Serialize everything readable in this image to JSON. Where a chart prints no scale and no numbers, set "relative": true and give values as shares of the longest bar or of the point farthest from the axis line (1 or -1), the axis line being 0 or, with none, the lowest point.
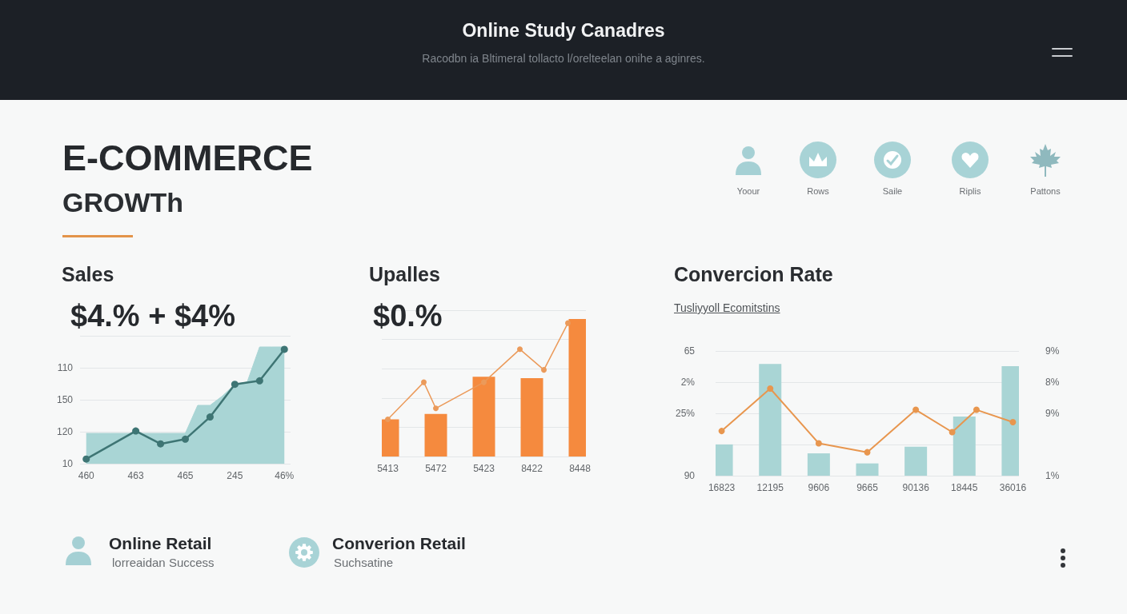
{
  "chart_data": [
    {
      "type": "other",
      "title": "Online Study Canadres",
      "subtitle": "Racodbn ia Bltimeral tollacto l/orelteelan onihe a aginres."
    },
    {
      "type": "other",
      "title": "E-COMMERCE",
      "subtitle": "GROWTh",
      "annotations": [
        "Yoour",
        "Rows",
        "Saile",
        "Riplis",
        "Pattons"
      ]
    },
    {
      "type": "line",
      "title": "Sales",
      "annotations": [
        "$4.% + $4%",
        "110",
        "150",
        "120",
        "10"
      ],
      "relative": true,
      "grid": "y",
      "marker": "circle",
      "categories": [
        "460",
        null,
        null,
        null,
        "463",
        null,
        null,
        null,
        "465",
        null,
        null,
        null,
        "245",
        null,
        null,
        null,
        "46%"
      ],
      "series": [
        {
          "type": "area",
          "marker": "none",
          "color": "#a9d5d5",
          "values": [
            0.26,
            0.26,
            0.26,
            0.26,
            0.26,
            0.26,
            0.26,
            0.26,
            0.26,
            0.5,
            0.5,
            0.58,
            0.68,
            0.7,
            1,
            1,
            1
          ]
        },
        {
          "type": "line",
          "color": "#3e7574",
          "values": [
            0.04,
            null,
            null,
            null,
            0.28,
            null,
            0.17,
            null,
            0.21,
            null,
            0.4,
            null,
            0.68,
            null,
            0.71,
            null,
            0.98
          ]
        }
      ]
    },
    {
      "type": "bar",
      "title": "Upalles",
      "annotations": [
        "$0.%"
      ],
      "relative": true,
      "grid": "y",
      "marker": "circle",
      "categories": [
        "5413",
        null,
        null,
        null,
        "5472",
        null,
        null,
        null,
        "5423",
        null,
        null,
        null,
        "8422",
        null,
        null,
        null,
        "8448"
      ],
      "series": [
        {
          "type": "bar",
          "color": "#f58a3e",
          "values": [
            0.27,
            null,
            null,
            null,
            0.31,
            null,
            null,
            null,
            0.58,
            null,
            null,
            null,
            0.57,
            null,
            null,
            null,
            1
          ]
        },
        {
          "type": "line",
          "color": "#eb9a5a",
          "values": [
            0.27,
            null,
            null,
            0.54,
            0.35,
            null,
            null,
            null,
            0.54,
            null,
            null,
            0.78,
            null,
            0.63,
            null,
            0.97,
            null
          ]
        }
      ]
    },
    {
      "type": "bar",
      "title": "Convercion Rate",
      "subtitle": "Tusliyyoll Ecomitstins",
      "annotations": [
        "65",
        "2%",
        "25%",
        "90",
        "9%",
        "8%",
        "9%",
        "1%"
      ],
      "relative": true,
      "grid": "y",
      "marker": "circle",
      "categories": [
        "16823",
        null,
        null,
        null,
        "12195",
        null,
        null,
        null,
        "9606",
        null,
        null,
        null,
        "9665",
        null,
        null,
        null,
        "90136",
        null,
        null,
        null,
        "18445",
        null,
        null,
        null,
        "36016"
      ],
      "series": [
        {
          "type": "bar",
          "color": "#a9d5d5",
          "values": [
            0.28,
            null,
            null,
            null,
            1,
            null,
            null,
            null,
            0.2,
            null,
            null,
            null,
            0.11,
            null,
            null,
            null,
            0.26,
            null,
            null,
            null,
            0.53,
            null,
            null,
            null,
            0.98
          ]
        },
        {
          "type": "line",
          "color": "#e8964e",
          "values": [
            0.4,
            null,
            null,
            null,
            0.78,
            null,
            null,
            null,
            0.29,
            null,
            null,
            null,
            0.21,
            null,
            null,
            null,
            0.59,
            null,
            null,
            0.39,
            null,
            0.59,
            null,
            null,
            0.48
          ]
        }
      ]
    },
    {
      "type": "other",
      "title": "Online Retail",
      "subtitle": "lorreaidan Success"
    },
    {
      "type": "other",
      "title": "Converion Retail",
      "subtitle": "Suchsatine"
    }
  ]
}
